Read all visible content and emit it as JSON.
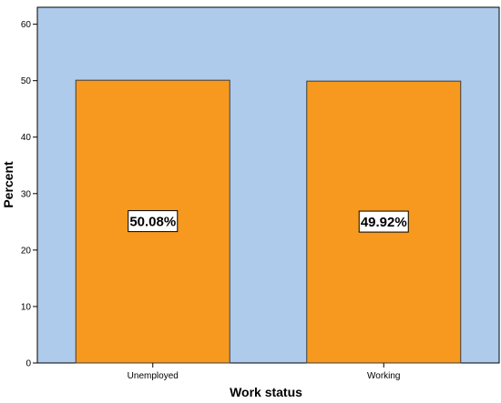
{
  "colors": {
    "plot_background": "#aecbeb",
    "bar_fill": "#f7991e",
    "bar_stroke": "#3d3d3d",
    "label_box": "#ffffff"
  },
  "chart_data": {
    "type": "bar",
    "categories": [
      "Unemployed",
      "Working"
    ],
    "values": [
      50.08,
      49.92
    ],
    "data_labels": [
      "50.08%",
      "49.92%"
    ],
    "xlabel": "Work status",
    "ylabel": "Percent",
    "ylim": [
      0,
      63
    ],
    "yticks": [
      0,
      10,
      20,
      30,
      40,
      50,
      60
    ],
    "ytick_labels": [
      "0",
      "10",
      "20",
      "30",
      "40",
      "50",
      "60"
    ],
    "grid": false,
    "legend": "none"
  }
}
